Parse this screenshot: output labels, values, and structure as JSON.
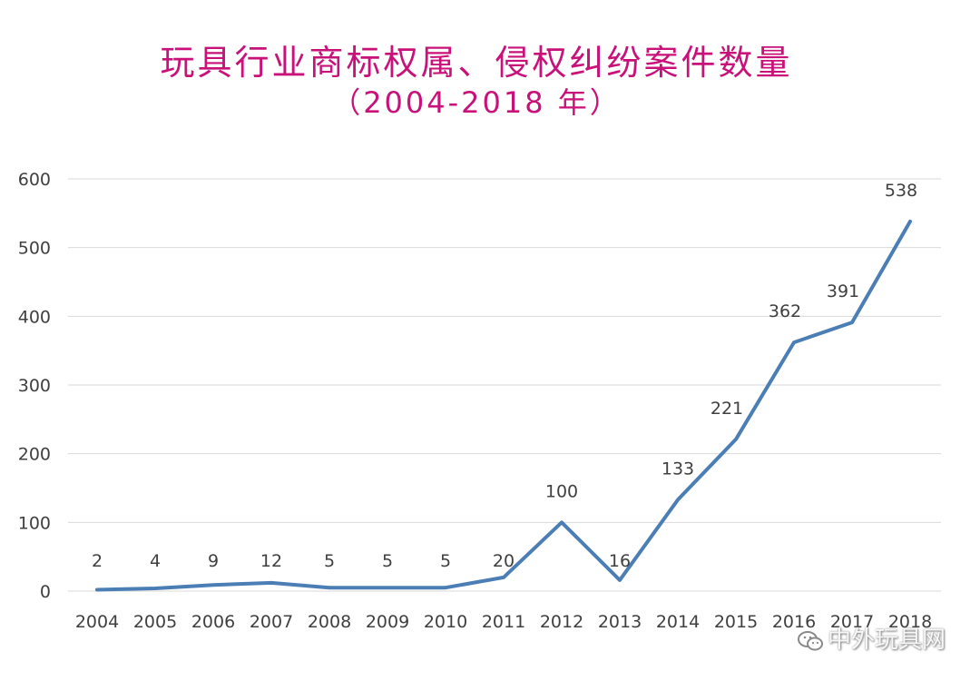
{
  "chart_data": {
    "type": "line",
    "title": "玩具行业商标权属、侵权纠纷案件数量",
    "subtitle": "（2004-2018 年）",
    "xlabel": "",
    "ylabel": "",
    "categories": [
      "2004",
      "2005",
      "2006",
      "2007",
      "2008",
      "2009",
      "2010",
      "2011",
      "2012",
      "2013",
      "2014",
      "2015",
      "2016",
      "2017",
      "2018"
    ],
    "series": [
      {
        "values": [
          2,
          4,
          9,
          12,
          5,
          5,
          5,
          20,
          100,
          16,
          133,
          221,
          362,
          391,
          538
        ]
      }
    ],
    "yticks": [
      "0",
      "100",
      "200",
      "300",
      "400",
      "500",
      "600"
    ],
    "ylim": [
      0,
      600
    ],
    "grid": true,
    "line_color": "#4a7eb5",
    "grid_color": "#d9d9d9"
  },
  "watermark": "中外玩具网"
}
